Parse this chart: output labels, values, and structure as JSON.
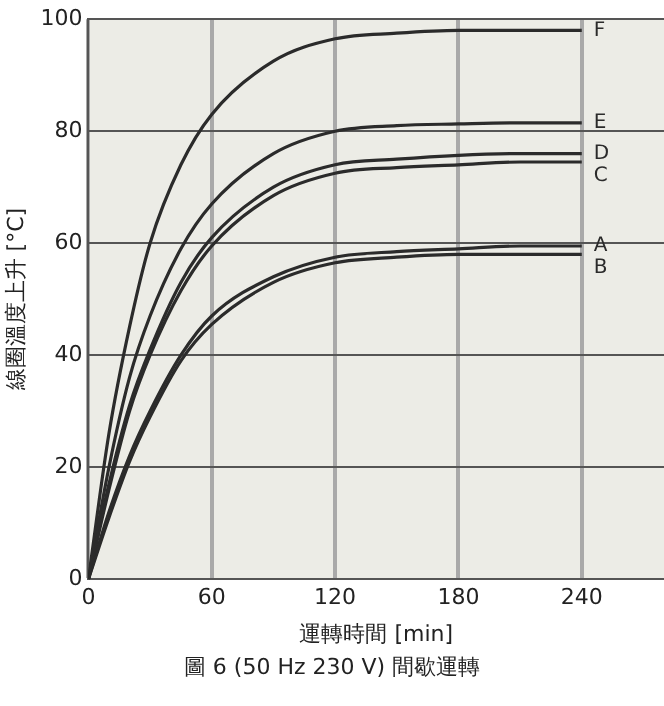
{
  "chart_data": {
    "type": "line",
    "xlabel": "運轉時間 [min]",
    "ylabel": "線圈溫度上升 [°C]",
    "annotations": [
      "圖 6 (50 Hz 230 V) 間歇運轉"
    ],
    "x": [
      0,
      10,
      20,
      30,
      45,
      60,
      90,
      120,
      150,
      180,
      210,
      240
    ],
    "series": [
      {
        "name": "F",
        "color": "#2b2b2b",
        "values": [
          0,
          26,
          45,
          60,
          74,
          83,
          92.5,
          96.5,
          97.5,
          98,
          98,
          98
        ]
      },
      {
        "name": "E",
        "color": "#2b2b2b",
        "values": [
          0,
          20,
          36,
          47,
          59,
          67,
          76,
          80,
          81,
          81.3,
          81.5,
          81.5
        ]
      },
      {
        "name": "D",
        "color": "#2b2b2b",
        "values": [
          0,
          17,
          31,
          41,
          53,
          61,
          70,
          74,
          75,
          75.7,
          76,
          76
        ]
      },
      {
        "name": "C",
        "color": "#2b2b2b",
        "values": [
          0,
          16,
          30,
          40,
          51.5,
          59.5,
          68.5,
          72.5,
          73.5,
          74,
          74.5,
          74.5
        ]
      },
      {
        "name": "A",
        "color": "#2b2b2b",
        "values": [
          0,
          12,
          22,
          30,
          40,
          47,
          54,
          57.5,
          58.5,
          59,
          59.5,
          59.5
        ]
      },
      {
        "name": "B",
        "color": "#2b2b2b",
        "values": [
          0,
          11,
          21,
          29,
          39,
          45.5,
          53,
          56.5,
          57.5,
          58,
          58,
          58
        ]
      }
    ],
    "xlim": [
      0,
      280
    ],
    "xticks": [
      0,
      60,
      120,
      180,
      240
    ],
    "ylim": [
      0,
      100
    ],
    "yticks": [
      0,
      20,
      40,
      60,
      80,
      100
    ],
    "grid": true,
    "legend": false,
    "marker": "none",
    "line_style": "solid"
  }
}
